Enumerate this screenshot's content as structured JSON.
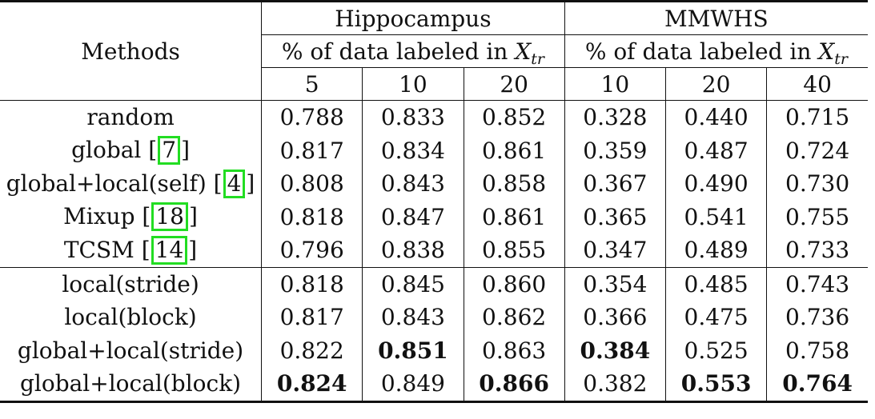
{
  "header": {
    "methods_label": "Methods",
    "datasets": [
      {
        "name": "Hippocampus",
        "subheader_prefix": "% of data labeled in ",
        "subheader_var": "X",
        "subheader_sub": "tr",
        "splits": [
          "5",
          "10",
          "20"
        ]
      },
      {
        "name": "MMWHS",
        "subheader_prefix": "% of data labeled in ",
        "subheader_var": "X",
        "subheader_sub": "tr",
        "splits": [
          "10",
          "20",
          "40"
        ]
      }
    ]
  },
  "group1": [
    {
      "method": "random",
      "ref": "",
      "values": [
        "0.788",
        "0.833",
        "0.852",
        "0.328",
        "0.440",
        "0.715"
      ],
      "bold": [
        false,
        false,
        false,
        false,
        false,
        false
      ]
    },
    {
      "method": "global ",
      "ref": "7",
      "values": [
        "0.817",
        "0.834",
        "0.861",
        "0.359",
        "0.487",
        "0.724"
      ],
      "bold": [
        false,
        false,
        false,
        false,
        false,
        false
      ]
    },
    {
      "method": "global+local(self) ",
      "ref": "4",
      "values": [
        "0.808",
        "0.843",
        "0.858",
        "0.367",
        "0.490",
        "0.730"
      ],
      "bold": [
        false,
        false,
        false,
        false,
        false,
        false
      ]
    },
    {
      "method": "Mixup ",
      "ref": "18",
      "values": [
        "0.818",
        "0.847",
        "0.861",
        "0.365",
        "0.541",
        "0.755"
      ],
      "bold": [
        false,
        false,
        false,
        false,
        false,
        false
      ]
    },
    {
      "method": "TCSM ",
      "ref": "14",
      "values": [
        "0.796",
        "0.838",
        "0.855",
        "0.347",
        "0.489",
        "0.733"
      ],
      "bold": [
        false,
        false,
        false,
        false,
        false,
        false
      ]
    }
  ],
  "group2": [
    {
      "method": "local(stride)",
      "ref": "",
      "values": [
        "0.818",
        "0.845",
        "0.860",
        "0.354",
        "0.485",
        "0.743"
      ],
      "bold": [
        false,
        false,
        false,
        false,
        false,
        false
      ]
    },
    {
      "method": "local(block)",
      "ref": "",
      "values": [
        "0.817",
        "0.843",
        "0.862",
        "0.366",
        "0.475",
        "0.736"
      ],
      "bold": [
        false,
        false,
        false,
        false,
        false,
        false
      ]
    },
    {
      "method": "global+local(stride)",
      "ref": "",
      "values": [
        "0.822",
        "0.851",
        "0.863",
        "0.384",
        "0.525",
        "0.758"
      ],
      "bold": [
        false,
        true,
        false,
        true,
        false,
        false
      ]
    },
    {
      "method": "global+local(block)",
      "ref": "",
      "values": [
        "0.824",
        "0.849",
        "0.866",
        "0.382",
        "0.553",
        "0.764"
      ],
      "bold": [
        true,
        false,
        true,
        false,
        true,
        true
      ]
    }
  ]
}
